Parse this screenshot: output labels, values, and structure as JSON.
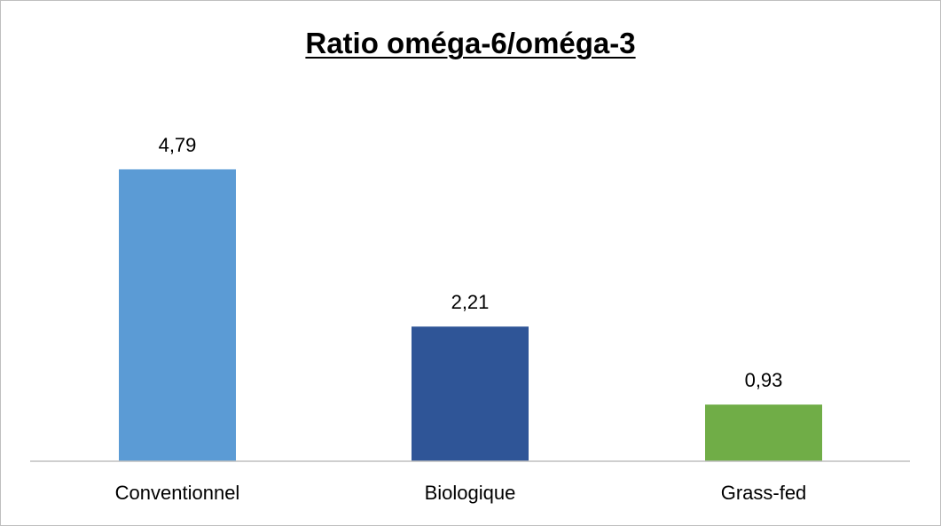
{
  "chart_data": {
    "type": "bar",
    "title": "Ratio oméga-6/oméga-3",
    "categories": [
      "Conventionnel",
      "Biologique",
      "Grass-fed"
    ],
    "values": [
      4.79,
      2.21,
      0.93
    ],
    "value_labels": [
      "4,79",
      "2,21",
      "0,93"
    ],
    "colors": [
      "#5b9bd5",
      "#2f5597",
      "#70ad47"
    ],
    "ylim": [
      0,
      6
    ],
    "grid": false,
    "legend": "none",
    "xlabel": "",
    "ylabel": ""
  }
}
